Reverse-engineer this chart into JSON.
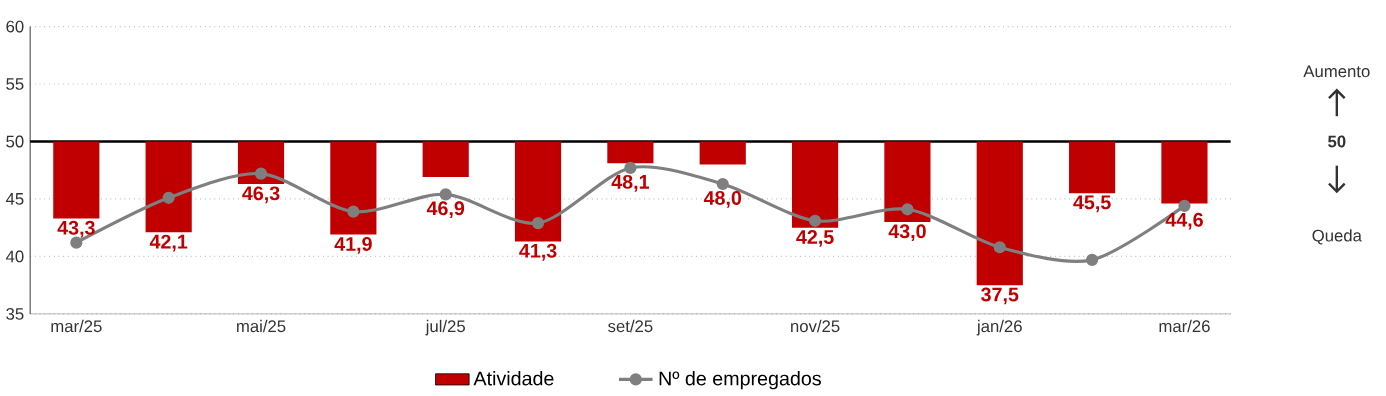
{
  "chart_data": {
    "type": "bar",
    "categories": [
      "mar/25",
      null,
      "mai/25",
      null,
      "jul/25",
      null,
      "set/25",
      null,
      "nov/25",
      null,
      "jan/26",
      null,
      "mar/26"
    ],
    "series": [
      {
        "name": "Atividade",
        "color": "#c00000",
        "base": [
          50,
          50,
          50,
          50,
          50,
          50,
          50,
          50,
          50,
          50,
          50,
          50,
          50
        ],
        "values": [
          -6.7,
          -7.9,
          -3.7,
          -8.1,
          -3.1,
          -8.7,
          -1.9,
          -2.0,
          -7.5,
          -7.0,
          -12.5,
          -4.5,
          -5.4
        ],
        "value_labels": [
          "43,3",
          "42,1",
          "46,3",
          "41,9",
          "46,9",
          "41,3",
          "48,1",
          "48,0",
          "42,5",
          "43,0",
          "37,5",
          "45,5",
          "44,6"
        ]
      },
      {
        "name": "Nº de empregados",
        "type": "line",
        "color": "#7f7f7f",
        "marker": "circle",
        "values": [
          41.2,
          45.1,
          47.2,
          43.9,
          45.4,
          42.9,
          47.7,
          46.3,
          43.1,
          44.1,
          40.8,
          39.7,
          44.4
        ]
      }
    ],
    "ylim": [
      35,
      60
    ],
    "yticks": [
      35,
      40,
      45,
      50,
      55,
      60
    ],
    "grid": "y",
    "legend": "bottom",
    "ref_lines": [
      {
        "axis": "y",
        "value": 50,
        "color": "#000000"
      }
    ],
    "annotations": [
      "Aumento",
      "50",
      "Queda"
    ]
  }
}
